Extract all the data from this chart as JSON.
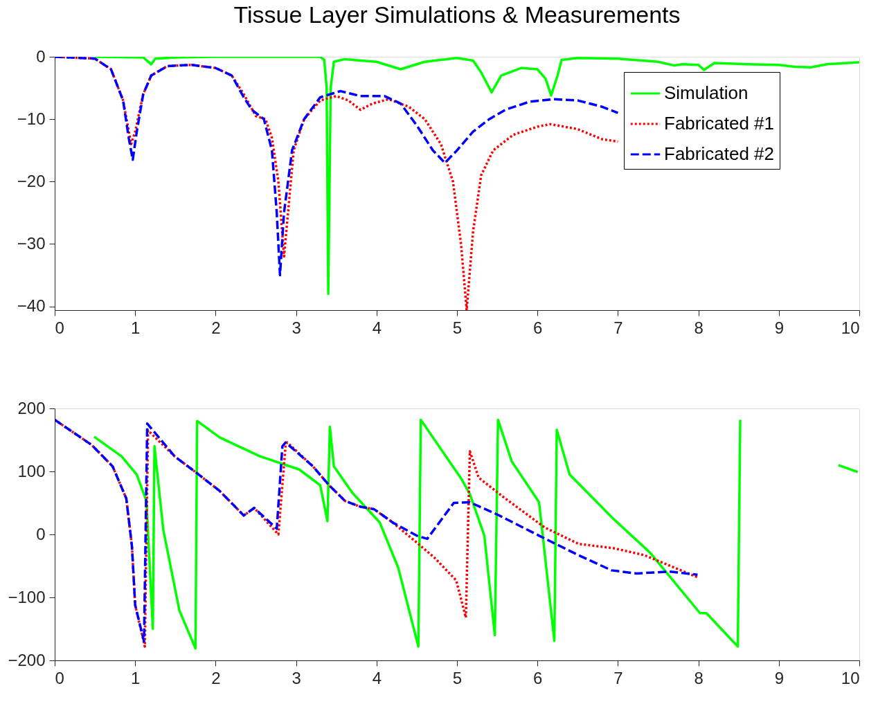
{
  "chart_data": [
    {
      "type": "line",
      "title": "Tissue Layer Simulations & Measurements",
      "xlim": [
        0,
        10
      ],
      "xticks": [
        0,
        1,
        2,
        3,
        4,
        5,
        6,
        7,
        8,
        9,
        10
      ],
      "ylim": [
        -40.6,
        0
      ],
      "yticks": [
        -40,
        -30,
        -20,
        -10,
        0
      ],
      "grid": false,
      "legend": "top right",
      "series": [
        {
          "name": "Simulation",
          "color": "#00ff00",
          "line_style": "solid",
          "x": [
            0.5,
            1.1,
            1.2,
            1.25,
            1.5,
            2,
            3,
            3.3,
            3.35,
            3.38,
            3.4,
            3.43,
            3.47,
            3.6,
            4.0,
            4.3,
            4.6,
            5.0,
            5.2,
            5.3,
            5.43,
            5.55,
            5.8,
            6.0,
            6.1,
            6.17,
            6.25,
            6.3,
            6.5,
            7,
            7.5,
            7.7,
            7.8,
            8.0,
            8.07,
            8.2,
            8.6,
            9.0,
            9.2,
            9.4,
            9.6,
            10
          ],
          "values": [
            0,
            -0.1,
            -1.2,
            -0.3,
            -0.1,
            0,
            0,
            0,
            -0.5,
            -5,
            -38,
            -5,
            -0.8,
            -0.4,
            -0.8,
            -2.0,
            -0.8,
            -0.2,
            -0.6,
            -2.5,
            -5.7,
            -3,
            -1.8,
            -2,
            -3.5,
            -6.2,
            -3,
            -0.5,
            -0.2,
            -0.3,
            -0.8,
            -1.4,
            -1.2,
            -1.3,
            -2.1,
            -1.0,
            -1.2,
            -1.3,
            -1.6,
            -1.7,
            -1.2,
            -0.9
          ]
        },
        {
          "name": "Fabricated #1",
          "color": "#ff0000",
          "line_style": "dotted",
          "x": [
            0,
            0.5,
            0.7,
            0.85,
            0.95,
            1.0,
            1.1,
            1.2,
            1.4,
            1.7,
            2.0,
            2.2,
            2.35,
            2.5,
            2.62,
            2.7,
            2.78,
            2.85,
            2.9,
            2.97,
            3.1,
            3.3,
            3.5,
            3.65,
            3.8,
            3.95,
            4.15,
            4.4,
            4.6,
            4.8,
            4.95,
            5.05,
            5.12,
            5.2,
            5.3,
            5.45,
            5.7,
            6.0,
            6.16,
            6.5,
            6.8,
            7.0
          ],
          "values": [
            0,
            -0.3,
            -2,
            -7,
            -14,
            -12,
            -6,
            -3,
            -1.5,
            -1.3,
            -1.8,
            -3,
            -6,
            -9.5,
            -10,
            -13,
            -20,
            -32,
            -25,
            -15,
            -10,
            -7,
            -6.3,
            -7,
            -8.5,
            -7.5,
            -6.8,
            -8,
            -10,
            -14,
            -20,
            -30,
            -40.6,
            -28,
            -19,
            -15,
            -12.5,
            -11.2,
            -10.8,
            -11.6,
            -13.2,
            -13.6
          ]
        },
        {
          "name": "Fabricated #2",
          "color": "#0000ff",
          "line_style": "dashed",
          "x": [
            0,
            0.5,
            0.7,
            0.85,
            0.92,
            0.97,
            1.02,
            1.1,
            1.2,
            1.4,
            1.7,
            2.0,
            2.2,
            2.35,
            2.45,
            2.6,
            2.7,
            2.76,
            2.8,
            2.85,
            2.95,
            3.1,
            3.3,
            3.55,
            3.8,
            4.1,
            4.3,
            4.5,
            4.7,
            4.85,
            5.0,
            5.2,
            5.4,
            5.6,
            5.9,
            6.2,
            6.5,
            6.8,
            7.0
          ],
          "values": [
            0,
            -0.3,
            -2,
            -7,
            -13,
            -16.5,
            -12,
            -6,
            -3,
            -1.5,
            -1.3,
            -1.8,
            -3,
            -6.5,
            -8.5,
            -10,
            -15,
            -25,
            -35,
            -25,
            -15,
            -10,
            -6.5,
            -5.5,
            -6.3,
            -6.3,
            -7.5,
            -11,
            -15,
            -17,
            -15,
            -12,
            -10,
            -8.5,
            -7.2,
            -6.8,
            -7,
            -8,
            -9
          ]
        }
      ]
    },
    {
      "type": "line",
      "xlim": [
        0,
        10
      ],
      "xticks": [
        0,
        1,
        2,
        3,
        4,
        5,
        6,
        7,
        8,
        9,
        10
      ],
      "ylim": [
        -200,
        200
      ],
      "yticks": [
        -200,
        -100,
        0,
        100,
        200
      ],
      "grid": false,
      "legend": "top right",
      "series": [
        {
          "name": "Simulation",
          "color": "#00ff00",
          "line_style": "solid",
          "x": [
            0.49,
            0.83,
            1.02,
            1.14,
            1.22,
            1.24,
            1.35,
            1.55,
            1.75,
            1.77,
            2.05,
            2.55,
            3.04,
            3.3,
            3.39,
            3.42,
            3.47,
            3.7,
            4.04,
            4.27,
            4.52,
            4.55,
            5.06,
            5.16,
            5.34,
            5.47,
            5.51,
            5.68,
            6.02,
            6.21,
            6.24,
            6.4,
            6.95,
            7.4,
            8.02,
            8.1,
            8.49,
            8.52,
            9.0,
            9.74,
            9.98
          ],
          "values": [
            155,
            124,
            95,
            53,
            -150,
            140,
            7,
            -121,
            -181,
            180,
            154,
            124,
            103,
            78,
            21,
            171,
            108,
            66,
            19,
            -53,
            -178,
            182,
            87,
            64,
            -2,
            -160,
            182,
            116,
            51,
            -169,
            166,
            95,
            24,
            -29,
            -125,
            -125,
            -178,
            182,
            null,
            110,
            99
          ]
        },
        {
          "name": "Fabricated #1",
          "color": "#ff0000",
          "line_style": "dotted",
          "x": [
            0,
            0.46,
            0.72,
            0.89,
            0.96,
            1.0,
            1.12,
            1.16,
            1.49,
            1.75,
            2.05,
            2.35,
            2.48,
            2.78,
            2.87,
            2.89,
            3.21,
            3.41,
            3.61,
            3.8,
            3.97,
            4.2,
            4.5,
            4.72,
            4.99,
            5.11,
            5.16,
            5.27,
            5.58,
            6.09,
            6.51,
            6.95,
            7.33,
            7.99
          ],
          "values": [
            182,
            142,
            108,
            57,
            -19,
            -112,
            -178,
            165,
            124,
            99,
            69,
            30,
            42,
            0,
            142,
            146,
            108,
            78,
            53,
            44,
            40,
            19,
            -13,
            -37,
            -73,
            -132,
            132,
            90,
            59,
            11,
            -15,
            -22,
            -33,
            -68
          ]
        },
        {
          "name": "Fabricated #2",
          "color": "#0000ff",
          "line_style": "dashed",
          "x": [
            0,
            0.46,
            0.72,
            0.89,
            0.96,
            1.0,
            1.11,
            1.15,
            1.49,
            1.75,
            2.05,
            2.35,
            2.48,
            2.76,
            2.83,
            2.87,
            3.21,
            3.41,
            3.61,
            3.8,
            3.97,
            4.2,
            4.5,
            4.63,
            4.96,
            5.16,
            5.51,
            6.02,
            6.51,
            6.92,
            7.23,
            7.64,
            7.99
          ],
          "values": [
            182,
            142,
            108,
            57,
            -19,
            -112,
            -170,
            176,
            124,
            99,
            69,
            30,
            42,
            9,
            140,
            146,
            108,
            78,
            53,
            44,
            40,
            19,
            -2,
            -7,
            50,
            51,
            31,
            -2,
            -33,
            -57,
            -62,
            -59,
            -64
          ]
        }
      ]
    }
  ]
}
